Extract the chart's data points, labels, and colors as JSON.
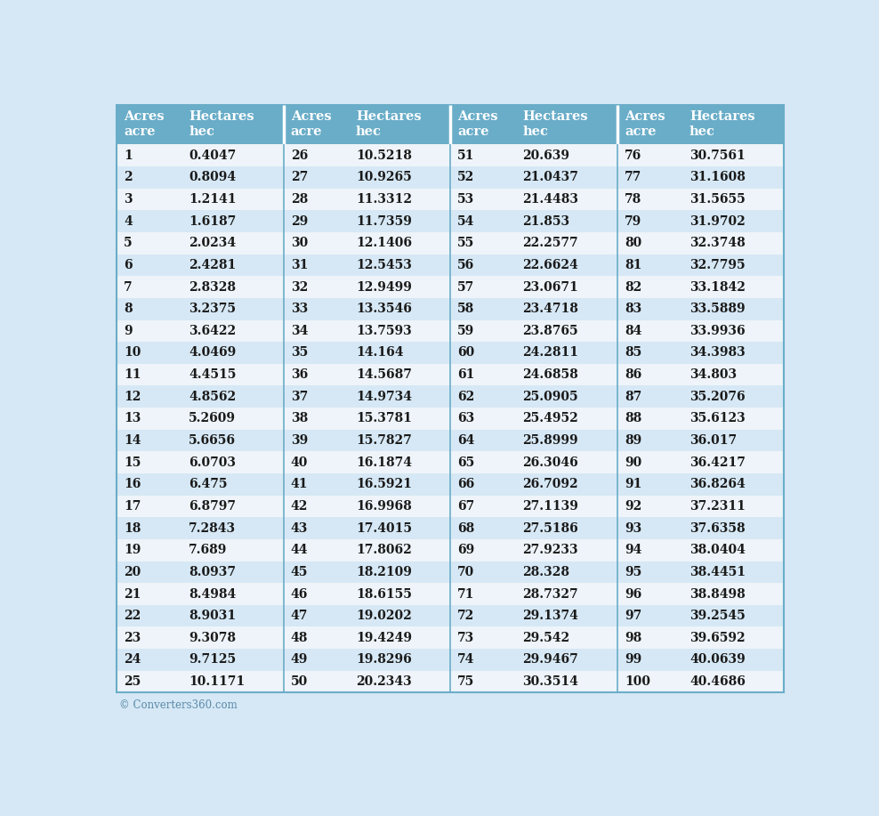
{
  "background_color": "#d6e8f5",
  "header_bg": "#6aadc8",
  "header_text_color": "#ffffff",
  "row_bg_odd": "#eef4f9",
  "row_bg_even": "#d6e8f5",
  "text_color": "#1a1a1a",
  "divider_color": "#ffffff",
  "border_color": "#6aadc8",
  "footer_text": "© Converters360.com",
  "footer_color": "#5a8aaa",
  "header_labels": [
    [
      "Acres",
      "acre"
    ],
    [
      "Hectares",
      "hec"
    ],
    [
      "Acres",
      "acre"
    ],
    [
      "Hectares",
      "hec"
    ],
    [
      "Acres",
      "acre"
    ],
    [
      "Hectares",
      "hec"
    ],
    [
      "Acres",
      "acre"
    ],
    [
      "Hectares",
      "hec"
    ]
  ],
  "data": [
    [
      1,
      "0.4047",
      26,
      "10.5218",
      51,
      "20.639",
      76,
      "30.7561"
    ],
    [
      2,
      "0.8094",
      27,
      "10.9265",
      52,
      "21.0437",
      77,
      "31.1608"
    ],
    [
      3,
      "1.2141",
      28,
      "11.3312",
      53,
      "21.4483",
      78,
      "31.5655"
    ],
    [
      4,
      "1.6187",
      29,
      "11.7359",
      54,
      "21.853",
      79,
      "31.9702"
    ],
    [
      5,
      "2.0234",
      30,
      "12.1406",
      55,
      "22.2577",
      80,
      "32.3748"
    ],
    [
      6,
      "2.4281",
      31,
      "12.5453",
      56,
      "22.6624",
      81,
      "32.7795"
    ],
    [
      7,
      "2.8328",
      32,
      "12.9499",
      57,
      "23.0671",
      82,
      "33.1842"
    ],
    [
      8,
      "3.2375",
      33,
      "13.3546",
      58,
      "23.4718",
      83,
      "33.5889"
    ],
    [
      9,
      "3.6422",
      34,
      "13.7593",
      59,
      "23.8765",
      84,
      "33.9936"
    ],
    [
      10,
      "4.0469",
      35,
      "14.164",
      60,
      "24.2811",
      85,
      "34.3983"
    ],
    [
      11,
      "4.4515",
      36,
      "14.5687",
      61,
      "24.6858",
      86,
      "34.803"
    ],
    [
      12,
      "4.8562",
      37,
      "14.9734",
      62,
      "25.0905",
      87,
      "35.2076"
    ],
    [
      13,
      "5.2609",
      38,
      "15.3781",
      63,
      "25.4952",
      88,
      "35.6123"
    ],
    [
      14,
      "5.6656",
      39,
      "15.7827",
      64,
      "25.8999",
      89,
      "36.017"
    ],
    [
      15,
      "6.0703",
      40,
      "16.1874",
      65,
      "26.3046",
      90,
      "36.4217"
    ],
    [
      16,
      "6.475",
      41,
      "16.5921",
      66,
      "26.7092",
      91,
      "36.8264"
    ],
    [
      17,
      "6.8797",
      42,
      "16.9968",
      67,
      "27.1139",
      92,
      "37.2311"
    ],
    [
      18,
      "7.2843",
      43,
      "17.4015",
      68,
      "27.5186",
      93,
      "37.6358"
    ],
    [
      19,
      "7.689",
      44,
      "17.8062",
      69,
      "27.9233",
      94,
      "38.0404"
    ],
    [
      20,
      "8.0937",
      45,
      "18.2109",
      70,
      "28.328",
      95,
      "38.4451"
    ],
    [
      21,
      "8.4984",
      46,
      "18.6155",
      71,
      "28.7327",
      96,
      "38.8498"
    ],
    [
      22,
      "8.9031",
      47,
      "19.0202",
      72,
      "29.1374",
      97,
      "39.2545"
    ],
    [
      23,
      "9.3078",
      48,
      "19.4249",
      73,
      "29.542",
      98,
      "39.6592"
    ],
    [
      24,
      "9.7125",
      49,
      "19.8296",
      74,
      "29.9467",
      99,
      "40.0639"
    ],
    [
      25,
      "10.1171",
      50,
      "20.2343",
      75,
      "30.3514",
      100,
      "40.4686"
    ]
  ]
}
